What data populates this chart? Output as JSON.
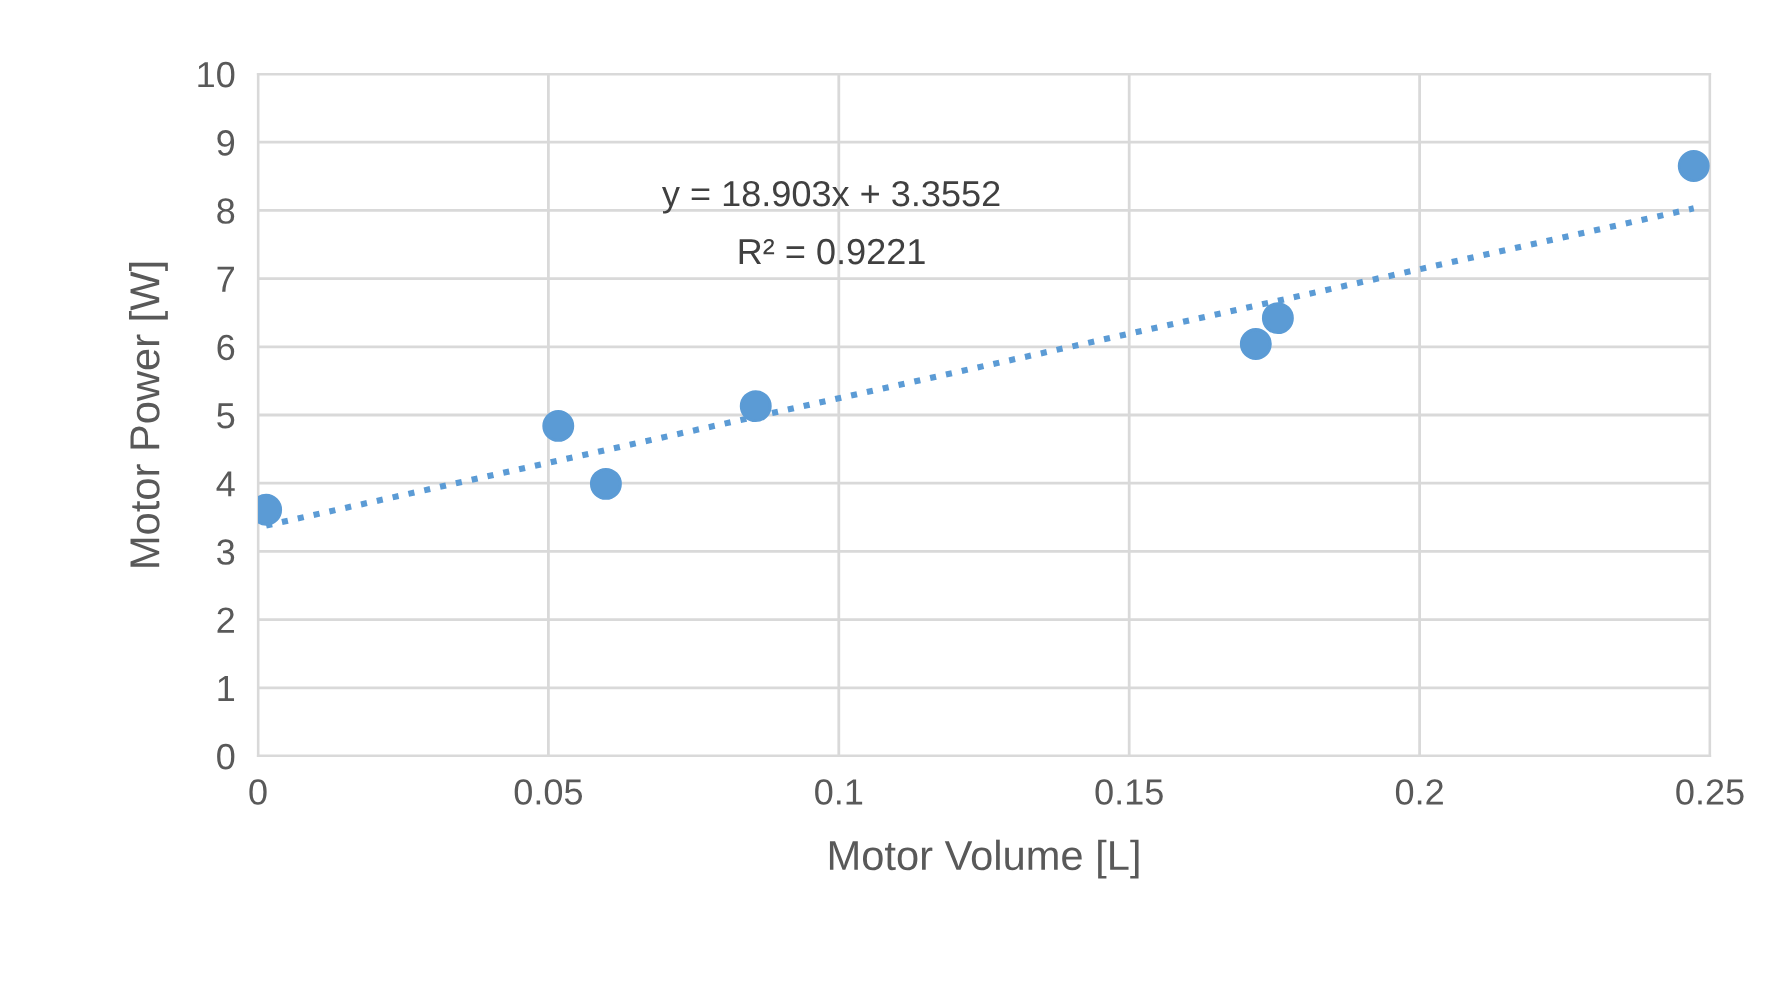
{
  "chart_data": {
    "type": "scatter",
    "xlabel": "Motor Volume [L]",
    "ylabel": "Motor Power [W]",
    "annotations": [
      "y = 18.903x + 3.3552",
      "R² = 0.9221"
    ],
    "series": [
      {
        "color": "#5b9bd5",
        "marker": "circle",
        "x": [
          0.0014,
          0.0517,
          0.0599,
          0.0857,
          0.1718,
          0.1756,
          0.2472
        ],
        "values": [
          3.61,
          4.84,
          3.99,
          5.13,
          6.04,
          6.42,
          8.65
        ]
      },
      {
        "type": "line",
        "color": "#5b9bd5",
        "line_style": "dotted",
        "x": [
          0.0014,
          0.2472
        ],
        "values": [
          3.38,
          8.03
        ]
      }
    ],
    "xlim": [
      0,
      0.25
    ],
    "xticks": [
      {
        "value": 0,
        "label": "0"
      },
      0.05,
      0.1,
      0.15,
      0.2,
      0.25
    ],
    "ylim": [
      0,
      10
    ],
    "yticks": [
      0,
      1,
      2,
      3,
      4,
      5,
      6,
      7,
      8,
      9,
      10
    ],
    "grid": true
  }
}
